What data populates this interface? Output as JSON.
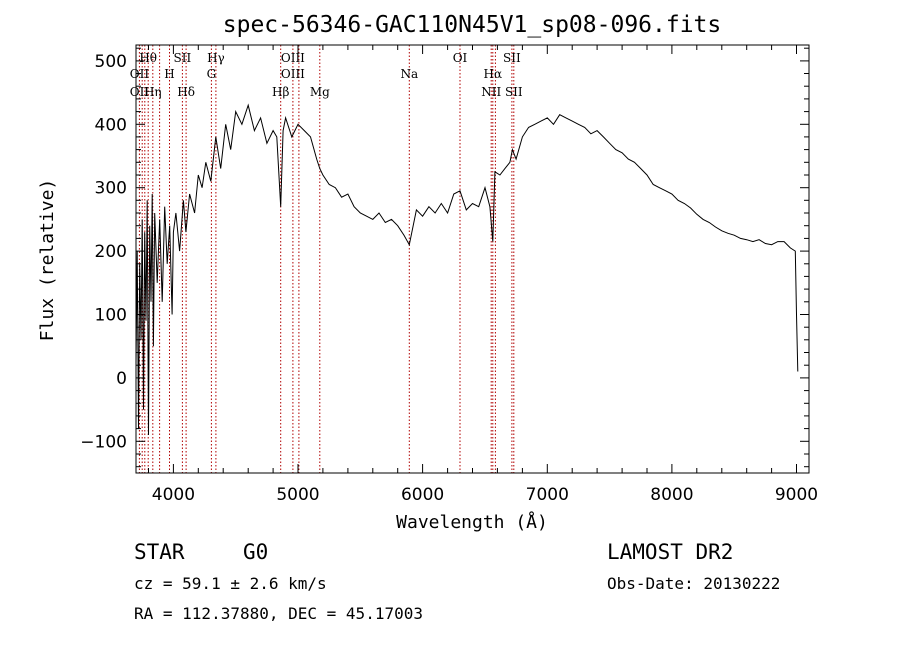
{
  "chart_data": {
    "type": "line",
    "title": "spec-56346-GAC110N45V1_sp08-096.fits",
    "xlabel": "Wavelength (Å)",
    "ylabel": "Flux (relative)",
    "xlim": [
      3700,
      9100
    ],
    "ylim": [
      -150,
      525
    ],
    "x_ticks": [
      "4000",
      "5000",
      "6000",
      "7000",
      "8000",
      "9000"
    ],
    "y_ticks": [
      "500",
      "400",
      "300",
      "200",
      "100",
      "0",
      "−100"
    ],
    "x_tick_values": [
      4000,
      5000,
      6000,
      7000,
      8000,
      9000
    ],
    "y_tick_values": [
      500,
      400,
      300,
      200,
      100,
      0,
      -100
    ],
    "series": [
      {
        "name": "flux",
        "x": [
          3700,
          3710,
          3720,
          3730,
          3740,
          3750,
          3760,
          3770,
          3780,
          3790,
          3800,
          3810,
          3820,
          3830,
          3840,
          3850,
          3870,
          3890,
          3910,
          3930,
          3950,
          3970,
          3990,
          4000,
          4020,
          4050,
          4080,
          4100,
          4130,
          4170,
          4200,
          4230,
          4260,
          4300,
          4340,
          4380,
          4420,
          4460,
          4500,
          4550,
          4600,
          4650,
          4700,
          4750,
          4800,
          4830,
          4861,
          4880,
          4900,
          4950,
          5000,
          5050,
          5100,
          5150,
          5175,
          5200,
          5250,
          5300,
          5350,
          5400,
          5450,
          5500,
          5550,
          5600,
          5650,
          5700,
          5750,
          5800,
          5850,
          5893,
          5950,
          6000,
          6050,
          6100,
          6150,
          6200,
          6250,
          6300,
          6350,
          6400,
          6450,
          6500,
          6540,
          6563,
          6580,
          6620,
          6660,
          6700,
          6720,
          6750,
          6800,
          6850,
          6900,
          6950,
          7000,
          7050,
          7100,
          7150,
          7200,
          7250,
          7300,
          7350,
          7400,
          7450,
          7500,
          7550,
          7600,
          7650,
          7700,
          7750,
          7800,
          7850,
          7900,
          7950,
          8000,
          8050,
          8100,
          8150,
          8200,
          8250,
          8300,
          8350,
          8400,
          8450,
          8500,
          8550,
          8600,
          8650,
          8700,
          8750,
          8800,
          8850,
          8900,
          8950,
          8990,
          9000,
          9010
        ],
        "y": [
          20,
          200,
          -80,
          180,
          60,
          250,
          -50,
          230,
          90,
          280,
          -90,
          240,
          120,
          290,
          50,
          260,
          150,
          250,
          120,
          270,
          180,
          240,
          100,
          230,
          260,
          200,
          280,
          230,
          290,
          260,
          320,
          300,
          340,
          310,
          380,
          330,
          400,
          360,
          420,
          400,
          430,
          390,
          410,
          370,
          390,
          380,
          270,
          390,
          410,
          380,
          400,
          390,
          380,
          345,
          330,
          320,
          305,
          300,
          285,
          290,
          270,
          260,
          255,
          250,
          260,
          245,
          250,
          240,
          225,
          210,
          265,
          255,
          270,
          260,
          275,
          260,
          290,
          295,
          265,
          275,
          270,
          300,
          270,
          215,
          325,
          320,
          330,
          340,
          360,
          345,
          380,
          395,
          400,
          405,
          410,
          400,
          415,
          410,
          405,
          400,
          395,
          385,
          390,
          380,
          370,
          360,
          355,
          345,
          340,
          330,
          320,
          305,
          300,
          295,
          290,
          280,
          275,
          268,
          258,
          250,
          245,
          238,
          232,
          228,
          225,
          220,
          218,
          215,
          218,
          212,
          210,
          215,
          215,
          205,
          200,
          100,
          10
        ]
      }
    ],
    "line_marker_labels": [
      {
        "label": "Hθ",
        "x": 3798,
        "row": 1
      },
      {
        "label": "OII",
        "x": 3727,
        "row": 2
      },
      {
        "label": "OII",
        "x": 3727,
        "row": 3
      },
      {
        "label": "Hη",
        "x": 3835,
        "row": 3
      },
      {
        "label": "SII",
        "x": 4072,
        "row": 1
      },
      {
        "label": "H",
        "x": 3969,
        "row": 2
      },
      {
        "label": "Hδ",
        "x": 4102,
        "row": 3
      },
      {
        "label": "Hγ",
        "x": 4341,
        "row": 1
      },
      {
        "label": "G",
        "x": 4305,
        "row": 2
      },
      {
        "label": "OIII",
        "x": 4959,
        "row": 1
      },
      {
        "label": "OIII",
        "x": 4959,
        "row": 2
      },
      {
        "label": "Hβ",
        "x": 4861,
        "row": 3
      },
      {
        "label": "Mg",
        "x": 5175,
        "row": 3
      },
      {
        "label": "Na",
        "x": 5893,
        "row": 2
      },
      {
        "label": "OI",
        "x": 6300,
        "row": 1
      },
      {
        "label": "Hα",
        "x": 6563,
        "row": 2
      },
      {
        "label": "NII",
        "x": 6550,
        "row": 3
      },
      {
        "label": "SII",
        "x": 6716,
        "row": 1
      },
      {
        "label": "SII",
        "x": 6731,
        "row": 3
      }
    ],
    "line_markers_x": [
      3727,
      3750,
      3771,
      3798,
      3835,
      3889,
      3969,
      4072,
      4102,
      4305,
      4341,
      4861,
      4959,
      5007,
      5175,
      5893,
      6300,
      6550,
      6563,
      6584,
      6716,
      6731
    ],
    "marker_color": "#b00000",
    "line_color": "#000000"
  },
  "info": {
    "object_type": "STAR",
    "subclass": "G0",
    "survey": "LAMOST DR2",
    "redshift": "cz = 59.1 ± 2.6 km/s",
    "obs_date": "Obs-Date: 20130222",
    "coords": "RA = 112.37880, DEC =  45.17003"
  }
}
